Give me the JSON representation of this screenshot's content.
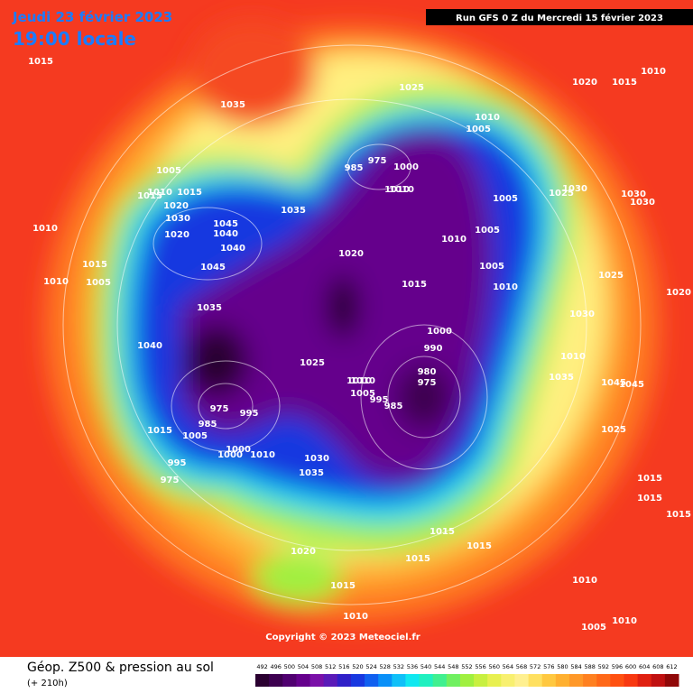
{
  "header": {
    "date": "Jeudi 23 février 2023",
    "time": "19:00 locale",
    "run": "Run GFS 0 Z du Mercredi 15 février 2023"
  },
  "copyright": "Copyright © 2023 Meteociel.fr",
  "footer": {
    "title": "Géop. Z500 & pression au sol",
    "lead": "(+ 210h)"
  },
  "colorbar": {
    "ticks": [
      492,
      496,
      500,
      504,
      508,
      512,
      516,
      520,
      524,
      528,
      532,
      536,
      540,
      544,
      548,
      552,
      556,
      560,
      564,
      568,
      572,
      576,
      580,
      584,
      588,
      592,
      596,
      600,
      604,
      608,
      612
    ],
    "colors": [
      "#2a0030",
      "#3d0050",
      "#500070",
      "#65008c",
      "#7a10a8",
      "#5a1ab8",
      "#3020c8",
      "#1838e0",
      "#1060f0",
      "#0a90f8",
      "#10c0f8",
      "#10e8f0",
      "#20f0c0",
      "#40f090",
      "#70f060",
      "#a0f040",
      "#c8f040",
      "#e8f050",
      "#f8f070",
      "#fff090",
      "#ffe060",
      "#ffc840",
      "#ffb030",
      "#ff9828",
      "#ff8020",
      "#ff6818",
      "#ff5010",
      "#f83810",
      "#e02010",
      "#c01010",
      "#900808"
    ]
  },
  "pressure_labels": [
    1015,
    1035,
    1025,
    1020,
    1015,
    1010,
    1005,
    1010,
    1015,
    1020,
    1030,
    1045,
    1040,
    1040,
    1045,
    1010,
    1015,
    1005,
    1035,
    1040,
    1035,
    1020,
    1010,
    1005,
    1005,
    1010,
    1005,
    1015,
    975,
    985,
    995,
    1000,
    1010,
    1015,
    1005,
    995,
    975,
    1000,
    1010,
    1030,
    1035,
    1025,
    1010,
    1005,
    995,
    985,
    980,
    975,
    990,
    1000,
    1015,
    1010,
    1020,
    1010,
    985,
    975,
    1000,
    1010,
    1005,
    1010,
    1030,
    1025,
    1030,
    1030,
    1025,
    1030,
    1035,
    1045,
    1045,
    1025,
    1020,
    1015,
    1015,
    1015,
    1015,
    1015,
    1015,
    1020,
    1015,
    1010,
    1010,
    1005,
    1010,
    1010
  ]
}
